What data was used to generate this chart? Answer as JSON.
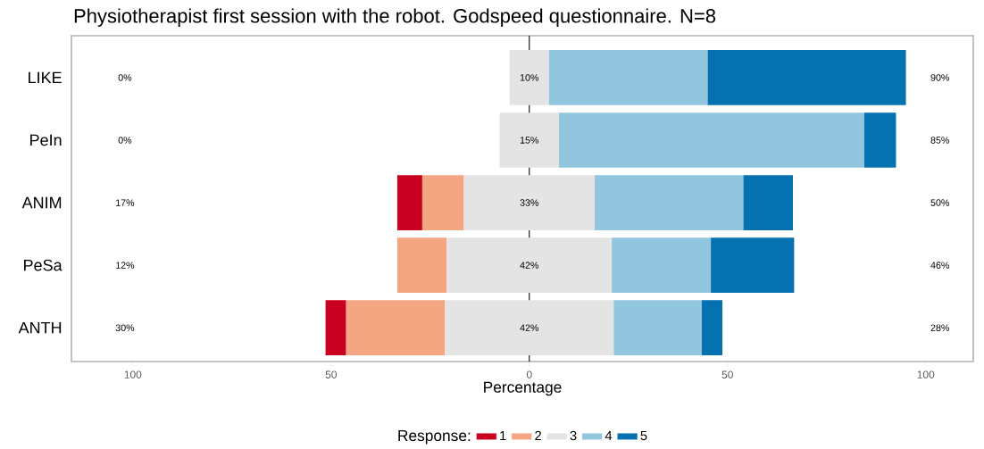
{
  "chart_data": {
    "type": "bar",
    "orientation": "horizontal",
    "title": "Physiotherapist first session with the robot. Godspeed questionnaire. N=8",
    "xlabel": "Percentage",
    "legend_title": "Response:",
    "legend": "bottom",
    "categories": [
      "LIKE",
      "PeIn",
      "ANIM",
      "PeSa",
      "ANTH"
    ],
    "series": [
      {
        "name": "1",
        "color": "#ca0020",
        "base": [
          null,
          null,
          -33.3,
          null,
          -51.4
        ],
        "values": [
          null,
          null,
          6.3,
          null,
          5.2
        ]
      },
      {
        "name": "2",
        "color": "#f4a582",
        "base": [
          null,
          null,
          -27.0,
          -33.3,
          -46.2
        ],
        "values": [
          null,
          null,
          10.5,
          12.5,
          24.9
        ]
      },
      {
        "name": "3",
        "color": "#e4e4e4",
        "base": [
          -5.0,
          -7.5,
          -16.5,
          -20.8,
          -21.3
        ],
        "values": [
          10.0,
          15.0,
          33.0,
          41.6,
          42.6
        ]
      },
      {
        "name": "4",
        "color": "#92c5de",
        "base": [
          5.0,
          7.5,
          16.5,
          20.8,
          21.3
        ],
        "values": [
          40.0,
          77.0,
          37.5,
          25.0,
          22.2
        ]
      },
      {
        "name": "5",
        "color": "#0571b0",
        "base": [
          45.0,
          84.5,
          54.0,
          45.8,
          43.5
        ],
        "values": [
          50.0,
          8.0,
          12.5,
          21.0,
          5.2
        ]
      }
    ],
    "xlim": [
      -115.5,
      112
    ],
    "xticks": [
      {
        "value": -100,
        "label": "100"
      },
      {
        "value": -50,
        "label": "50"
      },
      0,
      50,
      100
    ],
    "ref_lines": [
      {
        "axis": "x",
        "value": 0,
        "color": "#000000"
      }
    ],
    "annotations": [
      "0%",
      "10%",
      "90%",
      "0%",
      "15%",
      "85%",
      "17%",
      "33%",
      "50%",
      "12%",
      "42%",
      "46%",
      "30%",
      "42%",
      "28%"
    ]
  }
}
